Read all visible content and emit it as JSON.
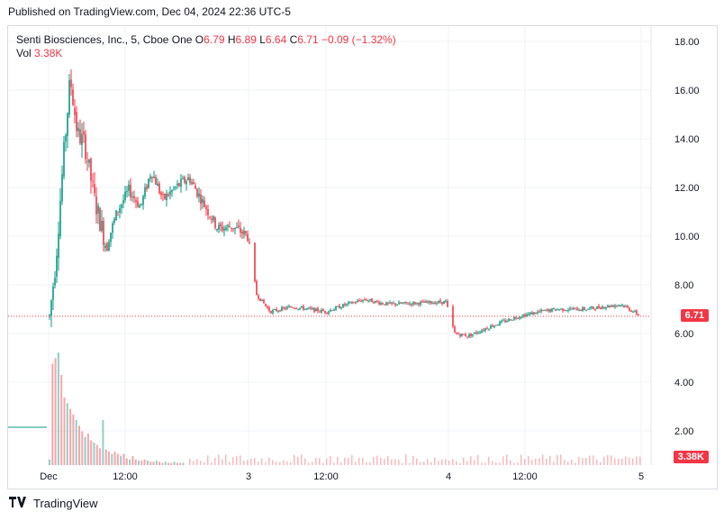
{
  "published": "Published on TradingView.com, Dec 04, 2024 22:36 UTC-5",
  "legend": {
    "symbol": "Senti Biosciences, Inc., 5, Cboe One",
    "o_label": "O",
    "o_value": "6.79",
    "h_label": "H",
    "h_value": "6.89",
    "l_label": "L",
    "l_value": "6.64",
    "c_label": "C",
    "c_value": "6.71",
    "change": "−0.09 (−1.32%)",
    "vol_label": "Vol",
    "vol_value": "3.38K"
  },
  "price_tag": "6.71",
  "vol_tag": "3.38K",
  "footer": {
    "brand": "TradingView"
  },
  "colors": {
    "up": "#089981",
    "down": "#f23645",
    "grid": "#f0f3fa"
  },
  "chart_data": {
    "type": "candlestick",
    "title": "Senti Biosciences, Inc., 5, Cboe One",
    "timeframe": "5",
    "y_ticks": [
      "18.00",
      "16.00",
      "14.00",
      "12.00",
      "10.00",
      "8.00",
      "6.00",
      "4.00",
      "2.00"
    ],
    "ylim": [
      0,
      18.6
    ],
    "x_ticks": [
      "Dec",
      "12:00",
      "3",
      "12:00",
      "4",
      "12:00",
      "5"
    ],
    "last_close": 6.71,
    "prior_close_level": 2.0,
    "grid": true,
    "price_path": [
      {
        "t": "Dec 2 09:30",
        "close": 6.7
      },
      {
        "t": "Dec 2 09:45",
        "close": 9.0
      },
      {
        "t": "Dec 2 10:00",
        "close": 13.0
      },
      {
        "t": "Dec 2 10:15",
        "close": 16.5
      },
      {
        "t": "Dec 2 10:30",
        "close": 14.2
      },
      {
        "t": "Dec 2 10:45",
        "close": 13.8
      },
      {
        "t": "Dec 2 11:15",
        "close": 11.5
      },
      {
        "t": "Dec 2 11:45",
        "close": 9.6
      },
      {
        "t": "Dec 2 12:15",
        "close": 11.0
      },
      {
        "t": "Dec 2 12:45",
        "close": 11.9
      },
      {
        "t": "Dec 2 13:15",
        "close": 11.2
      },
      {
        "t": "Dec 2 13:45",
        "close": 12.7
      },
      {
        "t": "Dec 2 14:15",
        "close": 11.5
      },
      {
        "t": "Dec 2 14:45",
        "close": 12.0
      },
      {
        "t": "Dec 2 15:15",
        "close": 12.4
      },
      {
        "t": "Dec 2 15:30",
        "close": 10.3
      },
      {
        "t": "Dec 2 15:45",
        "close": 10.4
      },
      {
        "t": "Dec 2 16:00",
        "close": 10.0
      },
      {
        "t": "Dec 3 09:30",
        "close": 7.6
      },
      {
        "t": "Dec 3 10:00",
        "close": 6.9
      },
      {
        "t": "Dec 3 11:00",
        "close": 7.1
      },
      {
        "t": "Dec 3 12:00",
        "close": 6.9
      },
      {
        "t": "Dec 3 13:00",
        "close": 7.2
      },
      {
        "t": "Dec 3 14:00",
        "close": 7.4
      },
      {
        "t": "Dec 3 15:00",
        "close": 7.2
      },
      {
        "t": "Dec 3 16:00",
        "close": 7.3
      },
      {
        "t": "Dec 4 09:30",
        "close": 6.0
      },
      {
        "t": "Dec 4 10:00",
        "close": 5.9
      },
      {
        "t": "Dec 4 11:00",
        "close": 6.3
      },
      {
        "t": "Dec 4 12:00",
        "close": 6.7
      },
      {
        "t": "Dec 4 13:00",
        "close": 6.9
      },
      {
        "t": "Dec 4 14:00",
        "close": 7.0
      },
      {
        "t": "Dec 4 15:00",
        "close": 7.0
      },
      {
        "t": "Dec 4 15:30",
        "close": 7.2
      },
      {
        "t": "Dec 4 16:00",
        "close": 6.71
      }
    ],
    "volume_profile": [
      0.05,
      0.9,
      0.95,
      1.0,
      0.8,
      0.6,
      0.55,
      0.5,
      0.45,
      0.4,
      0.35,
      0.3,
      0.25,
      0.28,
      0.22,
      0.2,
      0.18,
      0.15,
      0.4,
      0.14,
      0.12,
      0.1,
      0.12,
      0.1,
      0.08,
      0.1,
      0.06,
      0.05,
      0.08,
      0.05,
      0.04,
      0.04,
      0.05,
      0.04,
      0.03,
      0.03,
      0.04,
      0.03,
      0.02,
      0.03,
      0.02,
      0.02,
      0.03,
      0.02,
      0.02,
      0.02
    ]
  }
}
